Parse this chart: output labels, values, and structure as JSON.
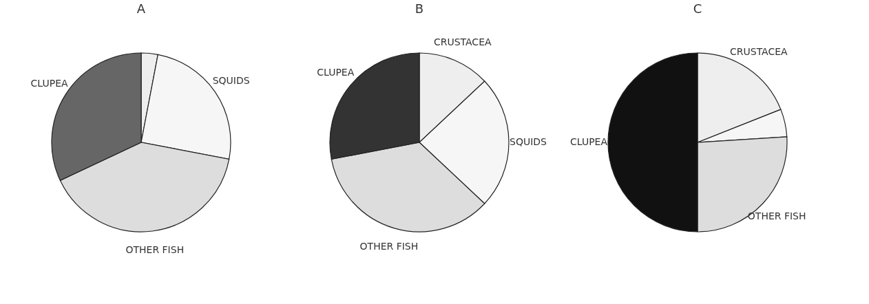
{
  "chart_data": [
    {
      "type": "pie",
      "title": "A",
      "categories": [
        null,
        "SQUIDS",
        "OTHER FISH",
        "CLUPEA"
      ],
      "values": [
        3,
        25,
        40,
        32
      ],
      "colors": [
        "#eeeeee",
        "#f6f6f6",
        "#dddddd",
        "#666666"
      ],
      "legend": false
    },
    {
      "type": "pie",
      "title": "B",
      "categories": [
        "CRUSTACEA",
        "SQUIDS",
        "OTHER FISH",
        "CLUPEA"
      ],
      "values": [
        13,
        24,
        35,
        28
      ],
      "colors": [
        "#eeeeee",
        "#f6f6f6",
        "#dddddd",
        "#333333"
      ],
      "legend": false
    },
    {
      "type": "pie",
      "title": "C",
      "categories": [
        "CRUSTACEA",
        null,
        "OTHER FISH",
        "CLUPEA"
      ],
      "values": [
        19,
        5,
        26,
        50
      ],
      "colors": [
        "#eeeeee",
        "#f6f6f6",
        "#dddddd",
        "#111111"
      ],
      "legend": false
    }
  ]
}
